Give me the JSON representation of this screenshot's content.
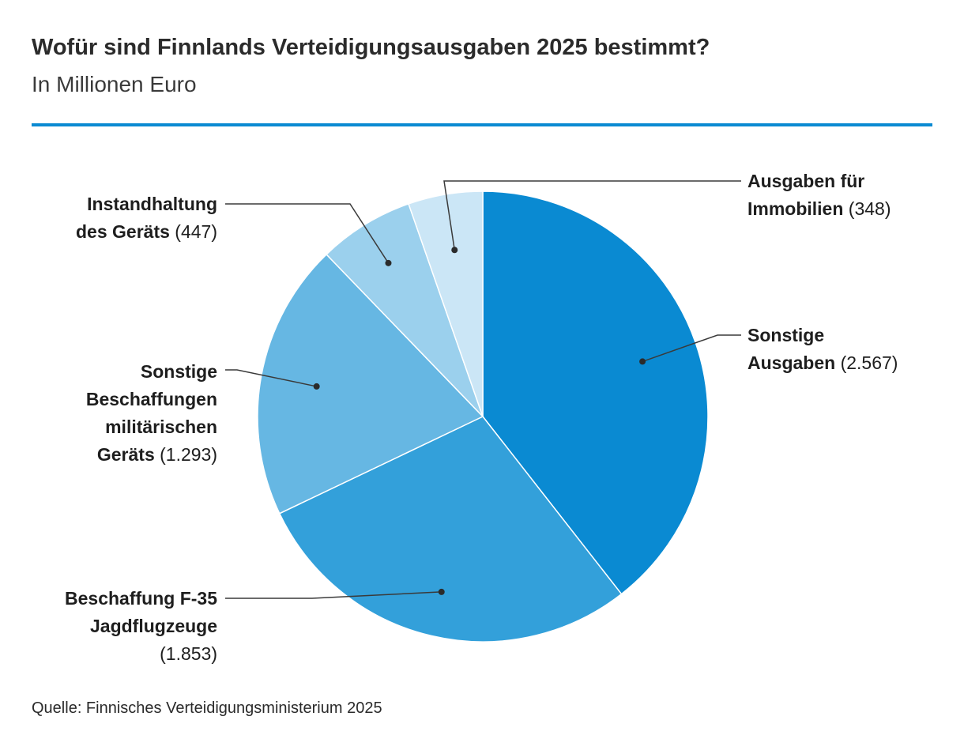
{
  "header": {
    "title": "Wofür sind Finnlands Verteidigungsausgaben 2025 bestimmt?",
    "subtitle": "In Millionen Euro"
  },
  "footer": {
    "source": "Quelle: Finnisches Verteidigungsministerium 2025"
  },
  "chart_data": {
    "type": "pie",
    "title": "Wofür sind Finnlands Verteidigungsausgaben 2025 bestimmt?",
    "subtitle": "In Millionen Euro",
    "start_angle_deg": 0,
    "direction": "clockwise",
    "slices": [
      {
        "name": "Sonstige Ausgaben",
        "value": 2567,
        "label_lines": [
          "Sonstige",
          "Ausgaben"
        ],
        "value_label": "(2.567)",
        "color": "#0a8ad2"
      },
      {
        "name": "Beschaffung F-35 Jagdflugzeuge",
        "value": 1853,
        "label_lines": [
          "Beschaffung F-35",
          "Jagdflugzeuge"
        ],
        "value_label": "(1.853)",
        "color": "#33a0da"
      },
      {
        "name": "Sonstige Beschaffungen militärischen Geräts",
        "value": 1293,
        "label_lines": [
          "Sonstige",
          "Beschaffungen",
          "militärischen",
          "Geräts"
        ],
        "value_label": "(1.293)",
        "color": "#66b7e3"
      },
      {
        "name": "Instandhaltung des Geräts",
        "value": 447,
        "label_lines": [
          "Instandhaltung",
          "des Geräts"
        ],
        "value_label": "(447)",
        "color": "#9bd0ed"
      },
      {
        "name": "Ausgaben für Immobilien",
        "value": 348,
        "label_lines": [
          "Ausgaben für",
          "Immobilien"
        ],
        "value_label": "(348)",
        "color": "#cbe6f6"
      }
    ]
  }
}
